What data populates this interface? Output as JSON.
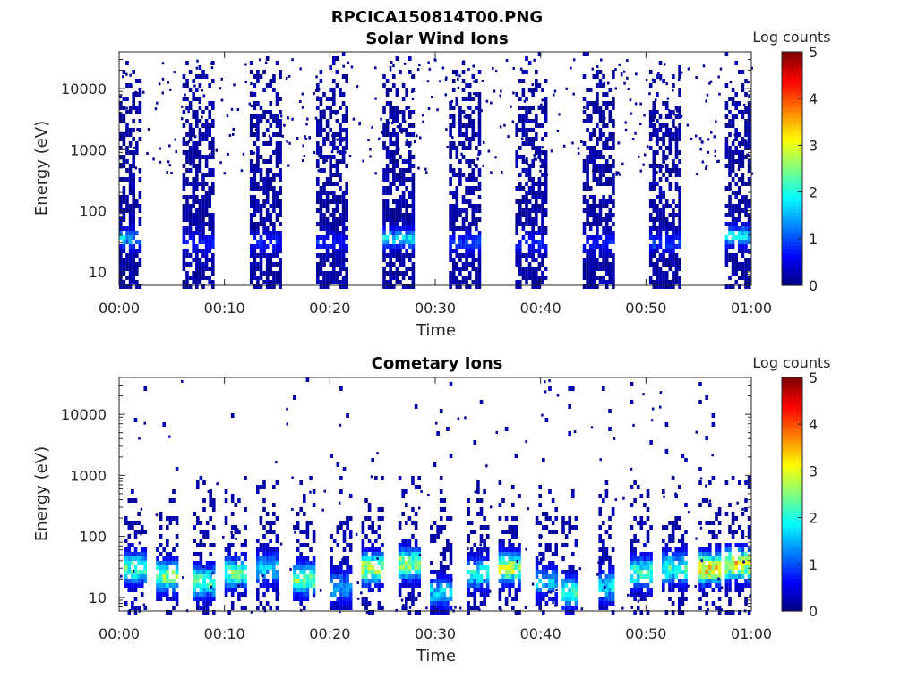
{
  "figure": {
    "filename": "RPCICA150814T00.PNG"
  },
  "chart_data": [
    {
      "type": "heatmap",
      "title": "Solar Wind Ions",
      "xlabel": "Time",
      "ylabel": "Energy (eV)",
      "x_ticks": [
        "00:00",
        "00:10",
        "00:20",
        "00:30",
        "00:40",
        "00:50",
        "01:00"
      ],
      "x_range_minutes": [
        0,
        60
      ],
      "y_scale": "log",
      "y_range": [
        6,
        40000
      ],
      "y_ticks": [
        10,
        100,
        1000,
        10000
      ],
      "y_tick_labels": [
        "10",
        "100",
        "1000",
        "10000"
      ],
      "colorbar": {
        "label": "Log counts",
        "range": [
          0,
          5
        ],
        "ticks": [
          "0",
          "1",
          "2",
          "3",
          "4",
          "5"
        ],
        "colormap": "jet"
      },
      "bursts": [
        {
          "t_start": 0.0,
          "t_end": 2.2,
          "peak_energy": 35,
          "peak_log_counts": 2.0
        },
        {
          "t_start": 6.0,
          "t_end": 9.0,
          "peak_energy": 30,
          "peak_log_counts": 1.0
        },
        {
          "t_start": 12.4,
          "t_end": 15.4,
          "peak_energy": 30,
          "peak_log_counts": 1.0
        },
        {
          "t_start": 18.7,
          "t_end": 21.7,
          "peak_energy": 30,
          "peak_log_counts": 1.0
        },
        {
          "t_start": 25.0,
          "t_end": 28.0,
          "peak_energy": 35,
          "peak_log_counts": 2.2
        },
        {
          "t_start": 31.3,
          "t_end": 34.3,
          "peak_energy": 30,
          "peak_log_counts": 1.2
        },
        {
          "t_start": 37.6,
          "t_end": 40.6,
          "peak_energy": 30,
          "peak_log_counts": 1.0
        },
        {
          "t_start": 44.0,
          "t_end": 47.0,
          "peak_energy": 30,
          "peak_log_counts": 1.0
        },
        {
          "t_start": 50.3,
          "t_end": 53.3,
          "peak_energy": 30,
          "peak_log_counts": 1.2
        },
        {
          "t_start": 57.5,
          "t_end": 60.0,
          "peak_energy": 38,
          "peak_log_counts": 2.3
        }
      ]
    },
    {
      "type": "heatmap",
      "title": "Cometary Ions",
      "xlabel": "Time",
      "ylabel": "Energy (eV)",
      "x_ticks": [
        "00:00",
        "00:10",
        "00:20",
        "00:30",
        "00:40",
        "00:50",
        "01:00"
      ],
      "x_range_minutes": [
        0,
        60
      ],
      "y_scale": "log",
      "y_range": [
        6,
        40000
      ],
      "y_ticks": [
        10,
        100,
        1000,
        10000
      ],
      "y_tick_labels": [
        "10",
        "100",
        "1000",
        "10000"
      ],
      "colorbar": {
        "label": "Log counts",
        "range": [
          0,
          5
        ],
        "ticks": [
          "0",
          "1",
          "2",
          "3",
          "4",
          "5"
        ],
        "colormap": "jet"
      },
      "bursts": [
        {
          "t_start": 0.5,
          "t_end": 2.5,
          "peak_energy": 30,
          "peak_log_counts": 2.5
        },
        {
          "t_start": 3.5,
          "t_end": 5.5,
          "peak_energy": 22,
          "peak_log_counts": 2.8
        },
        {
          "t_start": 7.0,
          "t_end": 9.0,
          "peak_energy": 18,
          "peak_log_counts": 2.7
        },
        {
          "t_start": 10.0,
          "t_end": 12.0,
          "peak_energy": 25,
          "peak_log_counts": 2.6
        },
        {
          "t_start": 13.0,
          "t_end": 15.0,
          "peak_energy": 30,
          "peak_log_counts": 1.8
        },
        {
          "t_start": 16.5,
          "t_end": 18.5,
          "peak_energy": 20,
          "peak_log_counts": 2.9
        },
        {
          "t_start": 20.0,
          "t_end": 22.0,
          "peak_energy": 15,
          "peak_log_counts": 1.5
        },
        {
          "t_start": 23.0,
          "t_end": 25.0,
          "peak_energy": 30,
          "peak_log_counts": 3.2
        },
        {
          "t_start": 26.5,
          "t_end": 28.5,
          "peak_energy": 35,
          "peak_log_counts": 3.0
        },
        {
          "t_start": 29.5,
          "t_end": 31.5,
          "peak_energy": 12,
          "peak_log_counts": 1.8
        },
        {
          "t_start": 33.0,
          "t_end": 35.0,
          "peak_energy": 25,
          "peak_log_counts": 2.2
        },
        {
          "t_start": 36.0,
          "t_end": 38.0,
          "peak_energy": 30,
          "peak_log_counts": 3.1
        },
        {
          "t_start": 39.5,
          "t_end": 41.5,
          "peak_energy": 18,
          "peak_log_counts": 1.6
        },
        {
          "t_start": 42.0,
          "t_end": 43.5,
          "peak_energy": 12,
          "peak_log_counts": 2.4
        },
        {
          "t_start": 45.5,
          "t_end": 47.0,
          "peak_energy": 15,
          "peak_log_counts": 2.0
        },
        {
          "t_start": 48.5,
          "t_end": 50.5,
          "peak_energy": 25,
          "peak_log_counts": 2.5
        },
        {
          "t_start": 51.5,
          "t_end": 54.0,
          "peak_energy": 30,
          "peak_log_counts": 2.4
        },
        {
          "t_start": 55.0,
          "t_end": 57.0,
          "peak_energy": 30,
          "peak_log_counts": 3.8
        },
        {
          "t_start": 57.5,
          "t_end": 60.0,
          "peak_energy": 35,
          "peak_log_counts": 3.6
        }
      ]
    }
  ]
}
